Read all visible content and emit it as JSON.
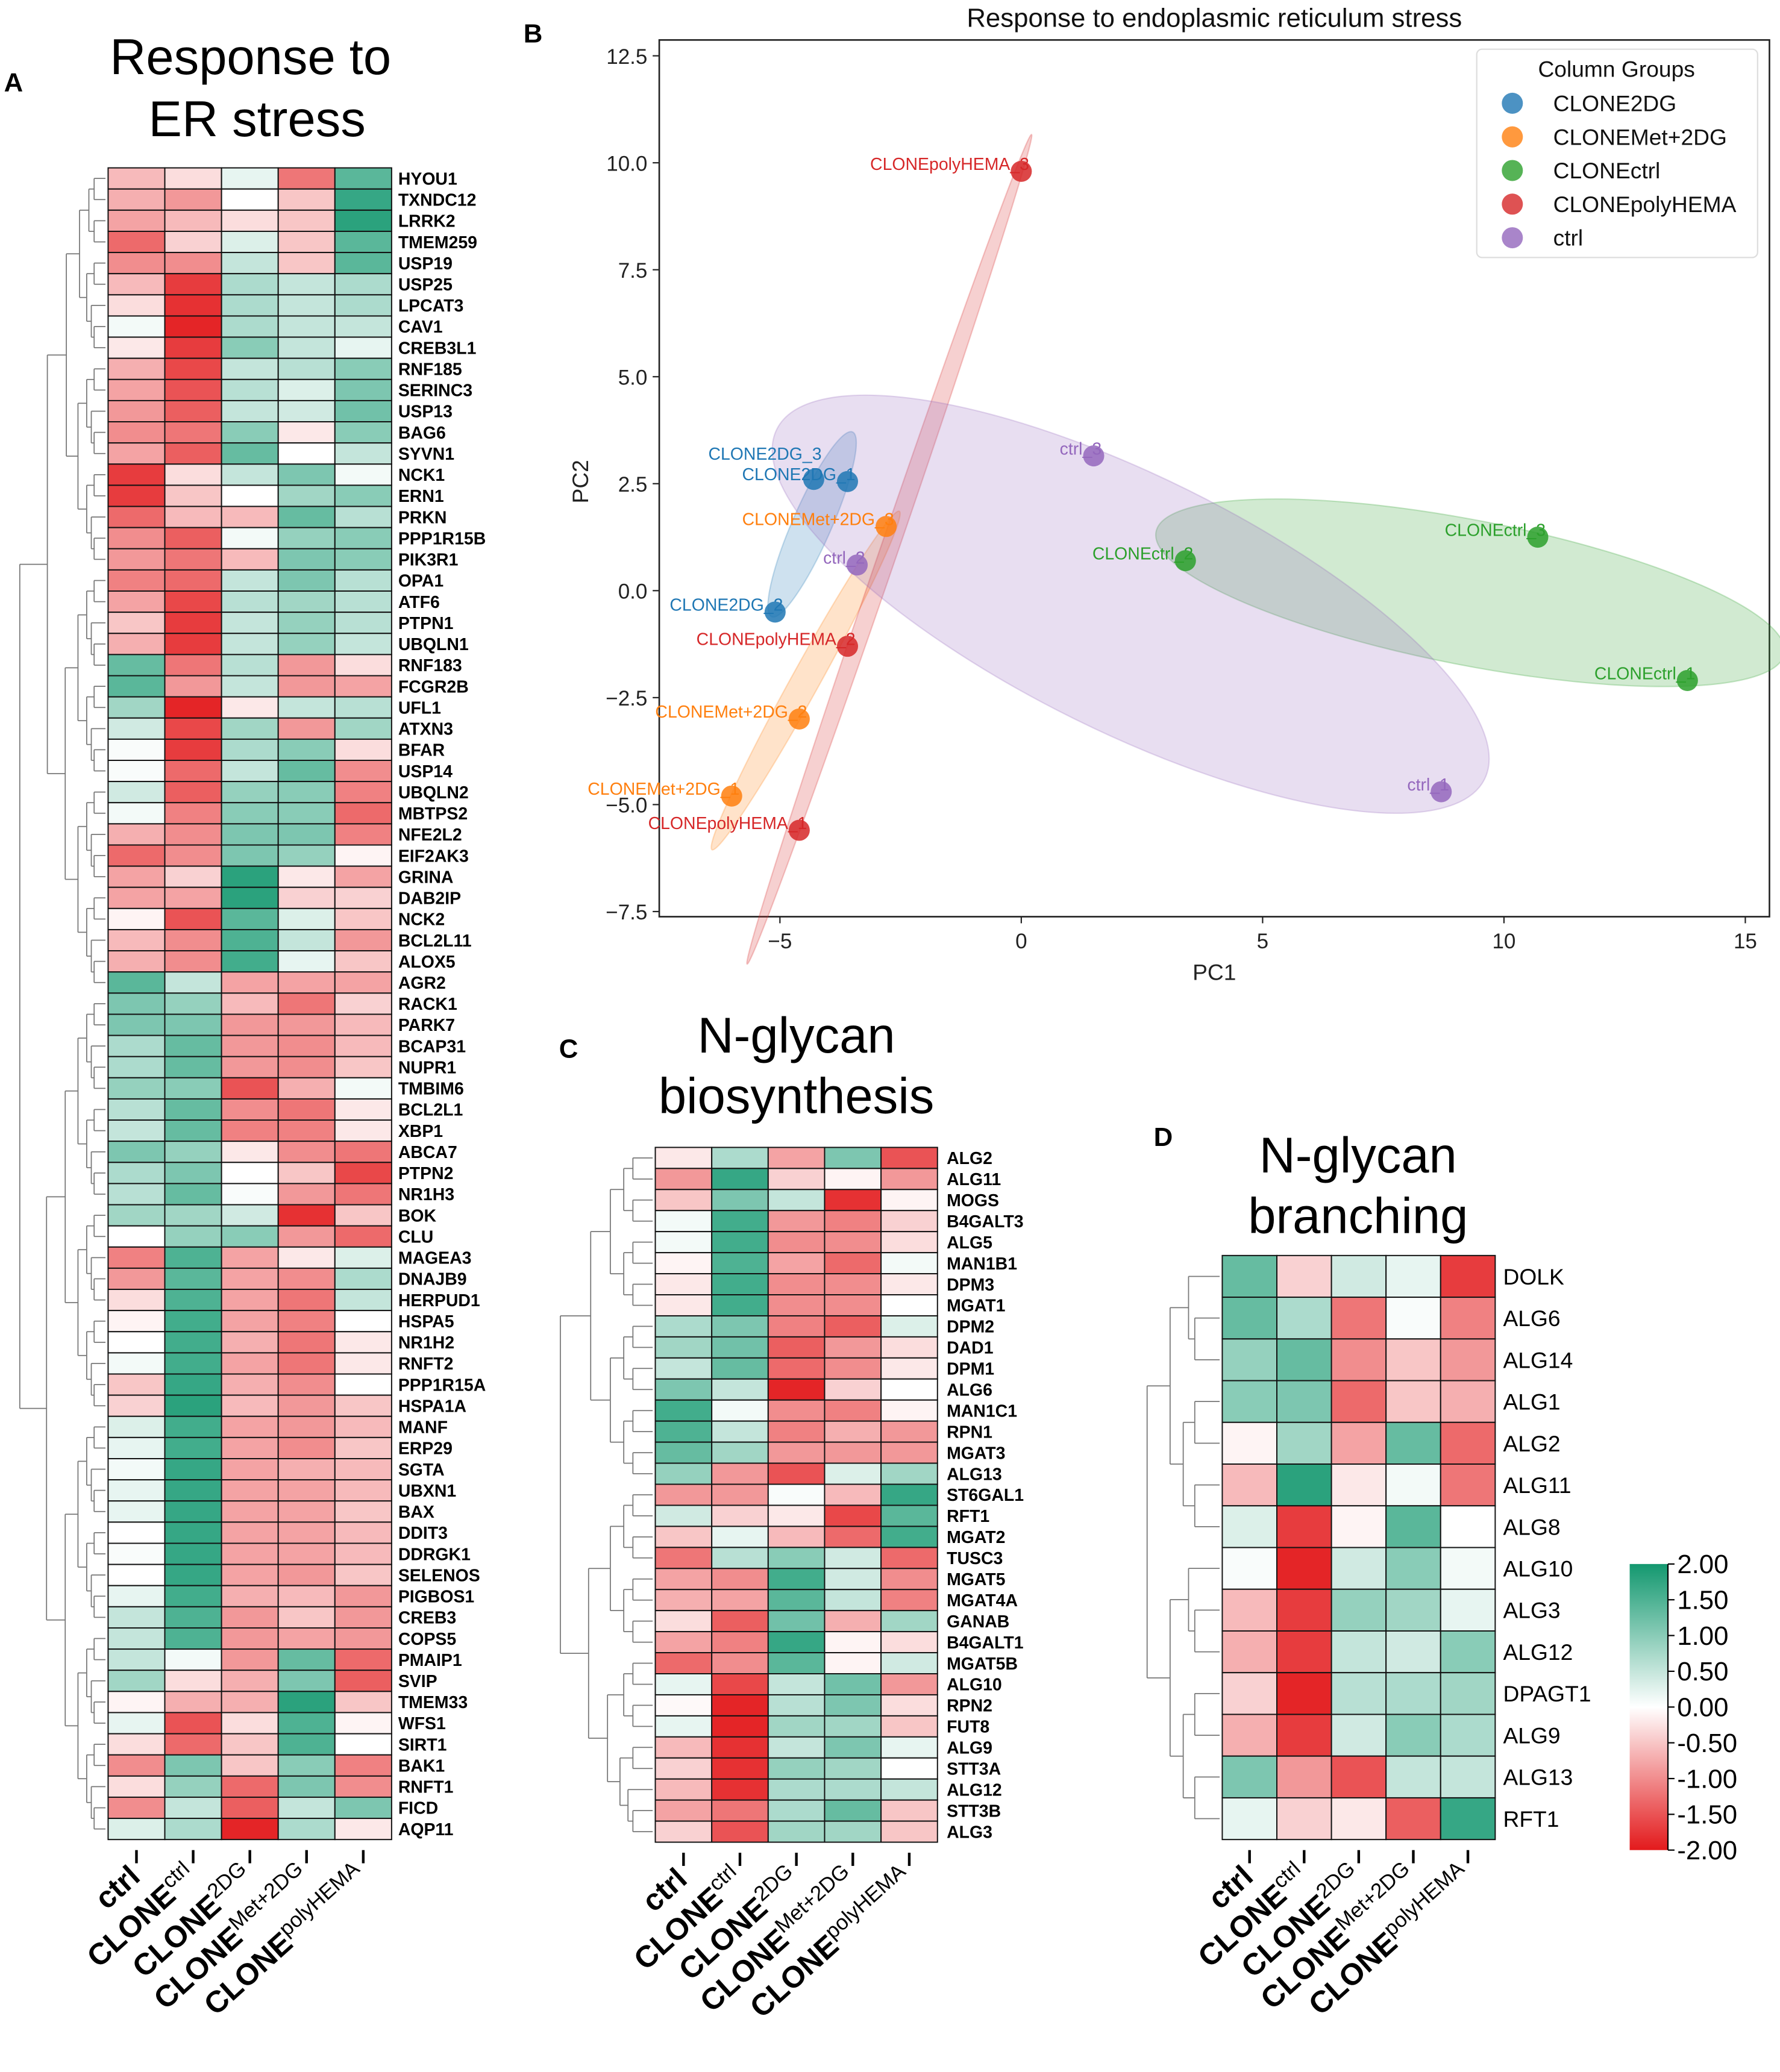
{
  "panels": {
    "a": "A",
    "b": "B",
    "c": "C",
    "d": "D"
  },
  "columns": [
    {
      "base": "ctrl",
      "sup": ""
    },
    {
      "base": "CLONE",
      "sup": "ctrl"
    },
    {
      "base": "CLONE",
      "sup": "2DG"
    },
    {
      "base": "CLONE",
      "sup": "Met+2DG"
    },
    {
      "base": "CLONE",
      "sup": "polyHEMA"
    }
  ],
  "colors": {
    "low": "#e31a1c",
    "mid": "#ffffff",
    "high": "#13986f"
  },
  "chart_data": [
    {
      "type": "heatmap",
      "title_lines": [
        "Response to",
        "ER stress"
      ],
      "value_range": [
        -2,
        2
      ],
      "genes": [
        "HYOU1",
        "TXNDC12",
        "LRRK2",
        "TMEM259",
        "USP19",
        "USP25",
        "LPCAT3",
        "CAV1",
        "CREB3L1",
        "RNF185",
        "SERINC3",
        "USP13",
        "BAG6",
        "SYVN1",
        "NCK1",
        "ERN1",
        "PRKN",
        "PPP1R15B",
        "PIK3R1",
        "OPA1",
        "ATF6",
        "PTPN1",
        "UBQLN1",
        "RNF183",
        "FCGR2B",
        "UFL1",
        "ATXN3",
        "BFAR",
        "USP14",
        "UBQLN2",
        "MBTPS2",
        "NFE2L2",
        "EIF2AK3",
        "GRINA",
        "DAB2IP",
        "NCK2",
        "BCL2L11",
        "ALOX5",
        "AGR2",
        "RACK1",
        "PARK7",
        "BCAP31",
        "NUPR1",
        "TMBIM6",
        "BCL2L1",
        "XBP1",
        "ABCA7",
        "PTPN2",
        "NR1H3",
        "BOK",
        "CLU",
        "MAGEA3",
        "DNAJB9",
        "HERPUD1",
        "HSPA5",
        "NR1H2",
        "RNFT2",
        "PPP1R15A",
        "HSPA1A",
        "MANF",
        "ERP29",
        "SGTA",
        "UBXN1",
        "BAX",
        "DDIT3",
        "DDRGK1",
        "SELENOS",
        "PIGBOS1",
        "CREB3",
        "COPS5",
        "PMAIP1",
        "SVIP",
        "TMEM33",
        "WFS1",
        "SIRT1",
        "BAK1",
        "RNFT1",
        "FICD",
        "AQP11"
      ],
      "values": [
        [
          -0.6,
          -0.3,
          0.2,
          -1.2,
          1.4
        ],
        [
          -0.7,
          -0.9,
          0,
          -0.5,
          1.7
        ],
        [
          -0.8,
          -0.6,
          -0.3,
          -0.5,
          1.8
        ],
        [
          -1.3,
          -0.4,
          0.3,
          -0.5,
          1.4
        ],
        [
          -1.0,
          -1.0,
          0.5,
          -0.5,
          1.4
        ],
        [
          -0.6,
          -1.7,
          0.7,
          0.5,
          0.7
        ],
        [
          -0.3,
          -1.8,
          0.7,
          0.5,
          0.7
        ],
        [
          0.1,
          -1.9,
          0.7,
          0.5,
          0.5
        ],
        [
          -0.2,
          -1.7,
          1.0,
          0.5,
          0.2
        ],
        [
          -0.7,
          -1.6,
          0.5,
          0.6,
          1.0
        ],
        [
          -0.8,
          -1.5,
          0.6,
          0.3,
          1.1
        ],
        [
          -0.9,
          -1.4,
          0.5,
          0.4,
          1.2
        ],
        [
          -1.0,
          -1.2,
          1.0,
          -0.2,
          1.0
        ],
        [
          -0.8,
          -1.4,
          1.3,
          0,
          0.5
        ],
        [
          -1.7,
          -0.3,
          0.5,
          1.1,
          0.1
        ],
        [
          -1.7,
          -0.5,
          0,
          0.8,
          1.0
        ],
        [
          -1.3,
          -0.6,
          -0.6,
          1.3,
          0.6
        ],
        [
          -1.0,
          -1.4,
          0.1,
          0.9,
          1.0
        ],
        [
          -0.9,
          -1.2,
          -0.6,
          1.1,
          1.0
        ],
        [
          -1.1,
          -1.3,
          0.5,
          1.1,
          0.6
        ],
        [
          -0.8,
          -1.6,
          0.6,
          0.8,
          0.6
        ],
        [
          -0.5,
          -1.7,
          0.5,
          0.9,
          0.6
        ],
        [
          -0.7,
          -1.7,
          0.5,
          0.9,
          0.5
        ],
        [
          1.3,
          -1.2,
          0.6,
          -0.9,
          -0.3
        ],
        [
          1.4,
          -0.9,
          0.5,
          -0.9,
          -0.8
        ],
        [
          0.8,
          -1.9,
          -0.2,
          0.5,
          0.6
        ],
        [
          0.4,
          -1.6,
          0.8,
          -0.9,
          0.8
        ],
        [
          0.05,
          -1.7,
          0.7,
          1.0,
          -0.3
        ],
        [
          0.05,
          -1.3,
          0.5,
          1.3,
          -1.0
        ],
        [
          0.4,
          -1.4,
          0.9,
          1.0,
          -1.1
        ],
        [
          0.1,
          -1.1,
          1.0,
          1.0,
          -1.3
        ],
        [
          -0.7,
          -1.0,
          1.1,
          1.1,
          -1.1
        ],
        [
          -1.3,
          -1.0,
          1.1,
          0.9,
          -0.1
        ],
        [
          -0.8,
          -0.4,
          1.8,
          -0.2,
          -0.8
        ],
        [
          -0.8,
          -0.8,
          1.8,
          -0.4,
          -0.4
        ],
        [
          -0.1,
          -1.5,
          1.4,
          0.3,
          -0.5
        ],
        [
          -0.6,
          -1.0,
          1.5,
          0.5,
          -0.9
        ],
        [
          -0.7,
          -1.0,
          1.6,
          0.2,
          -0.5
        ],
        [
          1.4,
          0.5,
          -0.8,
          -0.8,
          -0.8
        ],
        [
          1.1,
          0.9,
          -0.6,
          -1.2,
          -0.4
        ],
        [
          1.1,
          1.1,
          -0.9,
          -0.9,
          -0.6
        ],
        [
          0.7,
          1.3,
          -0.9,
          -1.0,
          -0.6
        ],
        [
          0.7,
          1.3,
          -0.9,
          -1.0,
          -0.5
        ],
        [
          0.9,
          1.0,
          -1.5,
          -0.7,
          0.1
        ],
        [
          0.6,
          1.3,
          -1.0,
          -1.2,
          -0.2
        ],
        [
          0.5,
          1.3,
          -1.1,
          -1.1,
          -0.2
        ],
        [
          1.1,
          0.9,
          -0.2,
          -1.0,
          -1.2
        ],
        [
          0.7,
          1.1,
          0,
          -0.5,
          -1.6
        ],
        [
          0.6,
          1.3,
          0.05,
          -0.9,
          -1.2
        ],
        [
          0.8,
          0.8,
          0.4,
          -1.8,
          -0.5
        ],
        [
          0,
          0.9,
          1.0,
          -0.9,
          -1.3
        ],
        [
          -1.1,
          1.5,
          -0.8,
          -0.2,
          0.3
        ],
        [
          -0.9,
          1.4,
          -0.8,
          -1.0,
          0.7
        ],
        [
          -0.3,
          1.5,
          -0.8,
          -1.2,
          0.5
        ],
        [
          -0.1,
          1.6,
          -0.8,
          -1.1,
          0
        ],
        [
          0,
          1.6,
          -0.7,
          -1.2,
          -0.2
        ],
        [
          0.1,
          1.6,
          -0.8,
          -1.2,
          -0.2
        ],
        [
          -0.5,
          1.7,
          -0.7,
          -1.0,
          0
        ],
        [
          -0.4,
          1.8,
          -0.6,
          -0.9,
          -0.5
        ],
        [
          0.3,
          1.6,
          -0.8,
          -0.9,
          -0.6
        ],
        [
          0.2,
          1.6,
          -0.8,
          -1.0,
          -0.5
        ],
        [
          0.1,
          1.7,
          -0.8,
          -0.7,
          -0.6
        ],
        [
          0.2,
          1.7,
          -0.8,
          -0.8,
          -0.6
        ],
        [
          0.2,
          1.7,
          -0.8,
          -0.8,
          -0.5
        ],
        [
          0,
          1.7,
          -0.8,
          -0.8,
          -0.6
        ],
        [
          0.05,
          1.7,
          -0.8,
          -0.8,
          -0.6
        ],
        [
          0,
          1.7,
          -0.8,
          -0.9,
          -0.5
        ],
        [
          0.2,
          1.6,
          -0.7,
          -0.6,
          -0.9
        ],
        [
          0.5,
          1.5,
          -0.9,
          -0.5,
          -0.9
        ],
        [
          0.5,
          1.5,
          -0.9,
          -0.8,
          -0.9
        ],
        [
          0.5,
          0.1,
          -0.9,
          1.3,
          -1.3
        ],
        [
          0.8,
          -0.3,
          -0.7,
          1.1,
          -1.4
        ],
        [
          -0.1,
          -0.7,
          -0.7,
          1.8,
          -0.5
        ],
        [
          0.2,
          -1.5,
          -0.3,
          1.5,
          -0.1
        ],
        [
          -0.3,
          -1.3,
          -0.5,
          1.5,
          0
        ],
        [
          -1.0,
          1.1,
          -0.5,
          1.0,
          -1.1
        ],
        [
          -0.3,
          0.9,
          -1.3,
          1.1,
          -1.0
        ],
        [
          -1.0,
          0.5,
          -1.4,
          0.5,
          1.1
        ],
        [
          0.3,
          0.7,
          -1.9,
          0.7,
          -0.2
        ]
      ]
    },
    {
      "type": "scatter",
      "title": "Response to endoplasmic reticulum stress",
      "xlabel": "PC1",
      "ylabel": "PC2",
      "xlim": [
        -7.5,
        15.5
      ],
      "ylim": [
        -7.62,
        12.87
      ],
      "xticks": [
        -5,
        0,
        5,
        10,
        15
      ],
      "yticks": [
        -7.5,
        -5.0,
        -2.5,
        0.0,
        2.5,
        5.0,
        7.5,
        10.0,
        12.5
      ],
      "grid": false,
      "legend": {
        "title": "Column Groups",
        "placement": "top-right"
      },
      "groups": [
        {
          "name": "CLONE2DG",
          "color": "#1f77b4"
        },
        {
          "name": "CLONEMet+2DG",
          "color": "#ff7f0e"
        },
        {
          "name": "CLONEctrl",
          "color": "#2ca02c"
        },
        {
          "name": "CLONEpolyHEMA",
          "color": "#d62728"
        },
        {
          "name": "ctrl",
          "color": "#9467bd"
        }
      ],
      "points": [
        {
          "label": "CLONE2DG_1",
          "group": 0,
          "x": -3.6,
          "y": 2.55
        },
        {
          "label": "CLONE2DG_3",
          "group": 0,
          "x": -4.3,
          "y": 2.6
        },
        {
          "label": "CLONE2DG_2",
          "group": 0,
          "x": -5.1,
          "y": -0.5
        },
        {
          "label": "CLONEMet+2DG_3",
          "group": 1,
          "x": -2.8,
          "y": 1.5
        },
        {
          "label": "CLONEMet+2DG_2",
          "group": 1,
          "x": -4.6,
          "y": -3.0
        },
        {
          "label": "CLONEMet+2DG_1",
          "group": 1,
          "x": -6.0,
          "y": -4.8
        },
        {
          "label": "CLONEctrl_2",
          "group": 2,
          "x": 3.4,
          "y": 0.7
        },
        {
          "label": "CLONEctrl_3",
          "group": 2,
          "x": 10.7,
          "y": 1.25
        },
        {
          "label": "CLONEctrl_1",
          "group": 2,
          "x": 13.8,
          "y": -2.1
        },
        {
          "label": "CLONEpolyHEMA_3",
          "group": 3,
          "x": 0.0,
          "y": 9.8
        },
        {
          "label": "CLONEpolyHEMA_2",
          "group": 3,
          "x": -3.6,
          "y": -1.3
        },
        {
          "label": "CLONEpolyHEMA_1",
          "group": 3,
          "x": -4.6,
          "y": -5.6
        },
        {
          "label": "ctrl_3",
          "group": 4,
          "x": 1.5,
          "y": 3.15
        },
        {
          "label": "ctrl_2",
          "group": 4,
          "x": -3.4,
          "y": 0.6
        },
        {
          "label": "ctrl_1",
          "group": 4,
          "x": 8.7,
          "y": -4.7
        }
      ]
    },
    {
      "type": "heatmap",
      "title_lines": [
        "N-glycan",
        "biosynthesis"
      ],
      "value_range": [
        -2,
        2
      ],
      "genes": [
        "ALG2",
        "ALG11",
        "MOGS",
        "B4GALT3",
        "ALG5",
        "MAN1B1",
        "DPM3",
        "MGAT1",
        "DPM2",
        "DAD1",
        "DPM1",
        "ALG6",
        "MAN1C1",
        "RPN1",
        "MGAT3",
        "ALG13",
        "ST6GAL1",
        "RFT1",
        "MGAT2",
        "TUSC3",
        "MGAT5",
        "MGAT4A",
        "GANAB",
        "B4GALT1",
        "MGAT5B",
        "ALG10",
        "RPN2",
        "FUT8",
        "ALG9",
        "STT3A",
        "ALG12",
        "STT3B",
        "ALG3"
      ],
      "values": [
        [
          -0.2,
          0.7,
          -0.8,
          1.1,
          -1.5
        ],
        [
          -0.9,
          1.7,
          -0.4,
          -0.1,
          -0.9
        ],
        [
          -0.5,
          1.1,
          0.5,
          -1.8,
          -0.1
        ],
        [
          0.1,
          1.6,
          -0.9,
          -1.1,
          -0.4
        ],
        [
          0.1,
          1.6,
          -1.0,
          -1.0,
          -0.3
        ],
        [
          -0.1,
          1.5,
          -0.8,
          -1.3,
          0.1
        ],
        [
          -0.2,
          1.6,
          -1.0,
          -1.0,
          -0.2
        ],
        [
          -0.2,
          1.6,
          -1.0,
          -1.0,
          0
        ],
        [
          0.7,
          1.1,
          -1.1,
          -1.4,
          0.3
        ],
        [
          0.8,
          1.2,
          -1.4,
          -0.9,
          -0.3
        ],
        [
          0.5,
          1.3,
          -1.3,
          -1.0,
          -0.2
        ],
        [
          1.1,
          0.5,
          -1.9,
          -0.4,
          0
        ],
        [
          1.6,
          0.1,
          -1.0,
          -1.1,
          -0.1
        ],
        [
          1.5,
          0.5,
          -1.1,
          -0.7,
          -0.9
        ],
        [
          1.3,
          0.8,
          -0.9,
          -0.9,
          -0.9
        ],
        [
          0.9,
          -0.9,
          -1.5,
          0.3,
          0.8
        ],
        [
          -0.9,
          -0.9,
          0.05,
          -0.6,
          1.7
        ],
        [
          0.4,
          -0.4,
          -0.2,
          -1.6,
          1.4
        ],
        [
          -0.5,
          0.2,
          -0.6,
          -1.3,
          1.6
        ],
        [
          -1.2,
          0.6,
          1.0,
          0.4,
          -1.3
        ],
        [
          -0.8,
          -1.0,
          1.6,
          0.4,
          -1.0
        ],
        [
          -0.7,
          -0.8,
          1.4,
          0.5,
          -1.1
        ],
        [
          -0.3,
          -1.4,
          1.2,
          -0.7,
          0.8
        ],
        [
          -0.8,
          -1.1,
          1.7,
          -0.1,
          -0.3
        ],
        [
          -1.3,
          -1.0,
          1.4,
          -0.1,
          0.4
        ],
        [
          0.2,
          -1.6,
          0.5,
          1.2,
          -0.9
        ],
        [
          -0.05,
          -1.9,
          0.6,
          1.1,
          -0.3
        ],
        [
          0.2,
          -1.9,
          0.8,
          0.8,
          -0.5
        ],
        [
          -0.6,
          -1.8,
          0.5,
          1.1,
          0.2
        ],
        [
          -0.4,
          -1.8,
          0.9,
          0.8,
          0
        ],
        [
          -0.6,
          -1.8,
          0.7,
          0.7,
          0.5
        ],
        [
          -0.8,
          -1.2,
          0.7,
          1.3,
          -0.5
        ],
        [
          -0.4,
          -1.5,
          0.8,
          0.8,
          -0.5
        ]
      ]
    },
    {
      "type": "heatmap",
      "title_lines": [
        "N-glycan",
        "branching"
      ],
      "value_range": [
        -2,
        2
      ],
      "colorbar_ticks": [
        "2.00",
        "1.50",
        "1.00",
        "0.50",
        "0.00",
        "-0.50",
        "-1.00",
        "-1.50",
        "-2.00"
      ],
      "genes": [
        "DOLK",
        "ALG6",
        "ALG14",
        "ALG1",
        "ALG2",
        "ALG11",
        "ALG8",
        "ALG10",
        "ALG3",
        "ALG12",
        "DPAGT1",
        "ALG9",
        "ALG13",
        "RFT1"
      ],
      "values": [
        [
          1.3,
          -0.4,
          0.4,
          0.2,
          -1.7
        ],
        [
          1.3,
          0.7,
          -1.2,
          0.05,
          -1.1
        ],
        [
          0.9,
          1.3,
          -1.0,
          -0.5,
          -0.9
        ],
        [
          1.0,
          1.1,
          -1.3,
          -0.5,
          -0.7
        ],
        [
          -0.1,
          0.8,
          -0.8,
          1.3,
          -1.3
        ],
        [
          -0.6,
          1.8,
          -0.2,
          0.1,
          -1.2
        ],
        [
          0.3,
          -1.7,
          -0.1,
          1.4,
          0
        ],
        [
          0.05,
          -1.9,
          0.4,
          1.0,
          0.1
        ],
        [
          -0.6,
          -1.7,
          0.9,
          0.8,
          0.2
        ],
        [
          -0.7,
          -1.7,
          0.5,
          0.4,
          1.0
        ],
        [
          -0.4,
          -1.9,
          0.6,
          0.7,
          0.8
        ],
        [
          -0.7,
          -1.7,
          0.4,
          1.0,
          0.7
        ],
        [
          1.1,
          -0.9,
          -1.5,
          0.5,
          0.5
        ],
        [
          0.2,
          -0.4,
          -0.2,
          -1.4,
          1.7
        ]
      ]
    }
  ]
}
